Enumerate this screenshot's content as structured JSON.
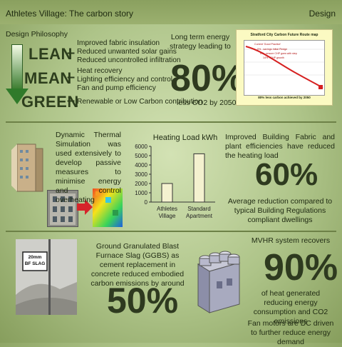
{
  "header": {
    "title": "Athletes Village: The carbon story",
    "section": "Design"
  },
  "design_philosophy": {
    "label": "Design Philosophy",
    "levels": [
      {
        "word": "LEAN",
        "items": [
          "Improved fabric insulation",
          "Reduced unwanted solar gains",
          "Reduced uncontrolled infiltration"
        ]
      },
      {
        "word": "MEAN",
        "items": [
          "Heat recovery",
          "Lighting efficiency and control",
          "Fan and pump efficiency"
        ]
      },
      {
        "word": "GREEN",
        "items": [
          "Renewable or Low Carbon contribution"
        ]
      }
    ]
  },
  "energy_strategy": {
    "intro": "Long term energy strategy leading to",
    "percent": "80%",
    "suffix": "less CO2 by 2050"
  },
  "route_map": {
    "title": "Stratford City Carbon Future Route map",
    "notes": [
      "Current 'Good Practice'",
      "0% - savings Initial Pledge",
      "0% - ensure CHP goes with step",
      "14% - CHP growth"
    ],
    "footer": "80% less carbon achieved by 2050"
  },
  "simulation": {
    "text": "Dynamic Thermal Simulation was used extensively to develop passive measures to minimise energy and control overheating"
  },
  "chart_data": {
    "type": "bar",
    "title": "Heating Load kWh",
    "categories": [
      "Athletes Village",
      "Standard Apartment"
    ],
    "category_lines": [
      [
        "Athletes",
        "Village"
      ],
      [
        "Standard",
        "Apartment"
      ]
    ],
    "values": [
      2000,
      5200
    ],
    "ylim": [
      0,
      6000
    ],
    "yticks": [
      0,
      1000,
      2000,
      3000,
      4000,
      5000,
      6000
    ],
    "bar_color": "#f4f1cf",
    "grid": false
  },
  "fabric": {
    "intro": "Improved Building Fabric and plant efficiencies have reduced the heating load",
    "percent": "60%",
    "suffix": "Average reduction compared to typical Building Regulations compliant dwellings"
  },
  "ggbs": {
    "intro": "Ground Granulated Blast Furnace Slag (GGBS) as cement replacement in concrete reduced embodied carbon emissions by around",
    "percent": "50%",
    "sign": [
      "20mm",
      "BF SLAG"
    ]
  },
  "mvhr": {
    "intro": "MVHR system recovers",
    "percent": "90%",
    "suffix": "of heat generated reducing energy consumption and CO2 emissions",
    "note": "Fan motors are DC driven to further reduce energy demand"
  }
}
